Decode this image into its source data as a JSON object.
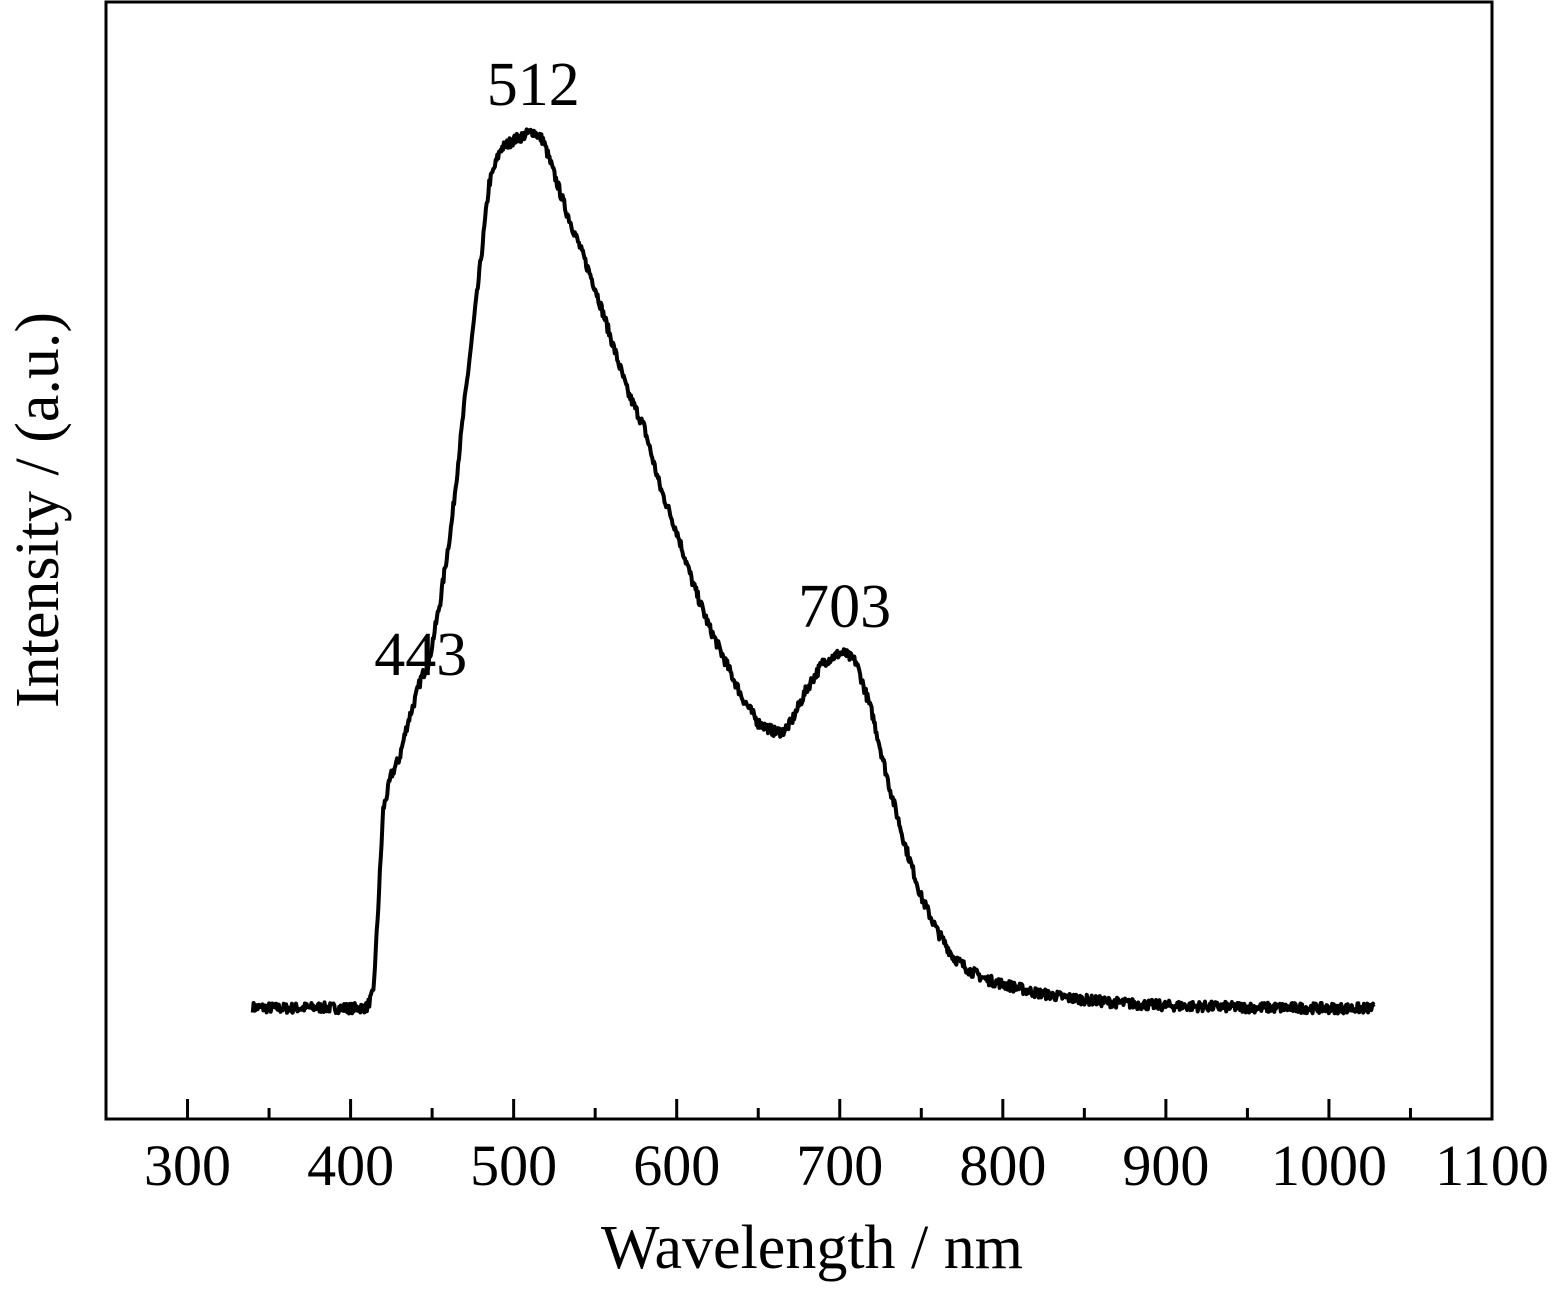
{
  "chart_data": {
    "type": "line",
    "title": "",
    "xlabel": "Wavelength / nm",
    "ylabel": "Intensity / (a.u.)",
    "xlim": [
      250,
      1100
    ],
    "ylim": [
      0,
      1.1
    ],
    "x_ticks": [
      300,
      400,
      500,
      600,
      700,
      800,
      900,
      1000,
      1100
    ],
    "x_tick_labels": [
      "300",
      "400",
      "500",
      "600",
      "700",
      "800",
      "900",
      "1000",
      "1100"
    ],
    "y_ticks_shown": false,
    "grid": false,
    "legend": "none",
    "line_color": "#000000",
    "series": [
      {
        "x": [
          340,
          360,
          380,
          400,
          410,
          414,
          417,
          420,
          425,
          430,
          435,
          440,
          443,
          448,
          455,
          462,
          470,
          478,
          485,
          492,
          500,
          506,
          512,
          518,
          525,
          532,
          540,
          550,
          560,
          570,
          580,
          590,
          600,
          610,
          620,
          630,
          640,
          650,
          660,
          665,
          670,
          680,
          690,
          700,
          703,
          710,
          720,
          730,
          740,
          750,
          760,
          770,
          780,
          790,
          800,
          820,
          840,
          860,
          880,
          900,
          950,
          1000,
          1028
        ],
        "y": [
          0.003,
          0.002,
          0.003,
          0.002,
          0.003,
          0.02,
          0.12,
          0.23,
          0.27,
          0.29,
          0.33,
          0.36,
          0.38,
          0.4,
          0.47,
          0.56,
          0.7,
          0.83,
          0.95,
          0.99,
          1.0,
          1.005,
          1.01,
          1.0,
          0.96,
          0.92,
          0.88,
          0.83,
          0.77,
          0.71,
          0.67,
          0.6,
          0.55,
          0.49,
          0.44,
          0.4,
          0.36,
          0.33,
          0.32,
          0.32,
          0.33,
          0.37,
          0.4,
          0.41,
          0.41,
          0.4,
          0.34,
          0.26,
          0.19,
          0.13,
          0.09,
          0.06,
          0.045,
          0.035,
          0.03,
          0.02,
          0.014,
          0.01,
          0.007,
          0.005,
          0.003,
          0.002,
          0.002
        ]
      }
    ],
    "annotations": [
      {
        "text": "443",
        "x": 443,
        "y": 0.385
      },
      {
        "text": "512",
        "x": 512,
        "y": 1.04
      },
      {
        "text": "703",
        "x": 703,
        "y": 0.44
      }
    ]
  }
}
